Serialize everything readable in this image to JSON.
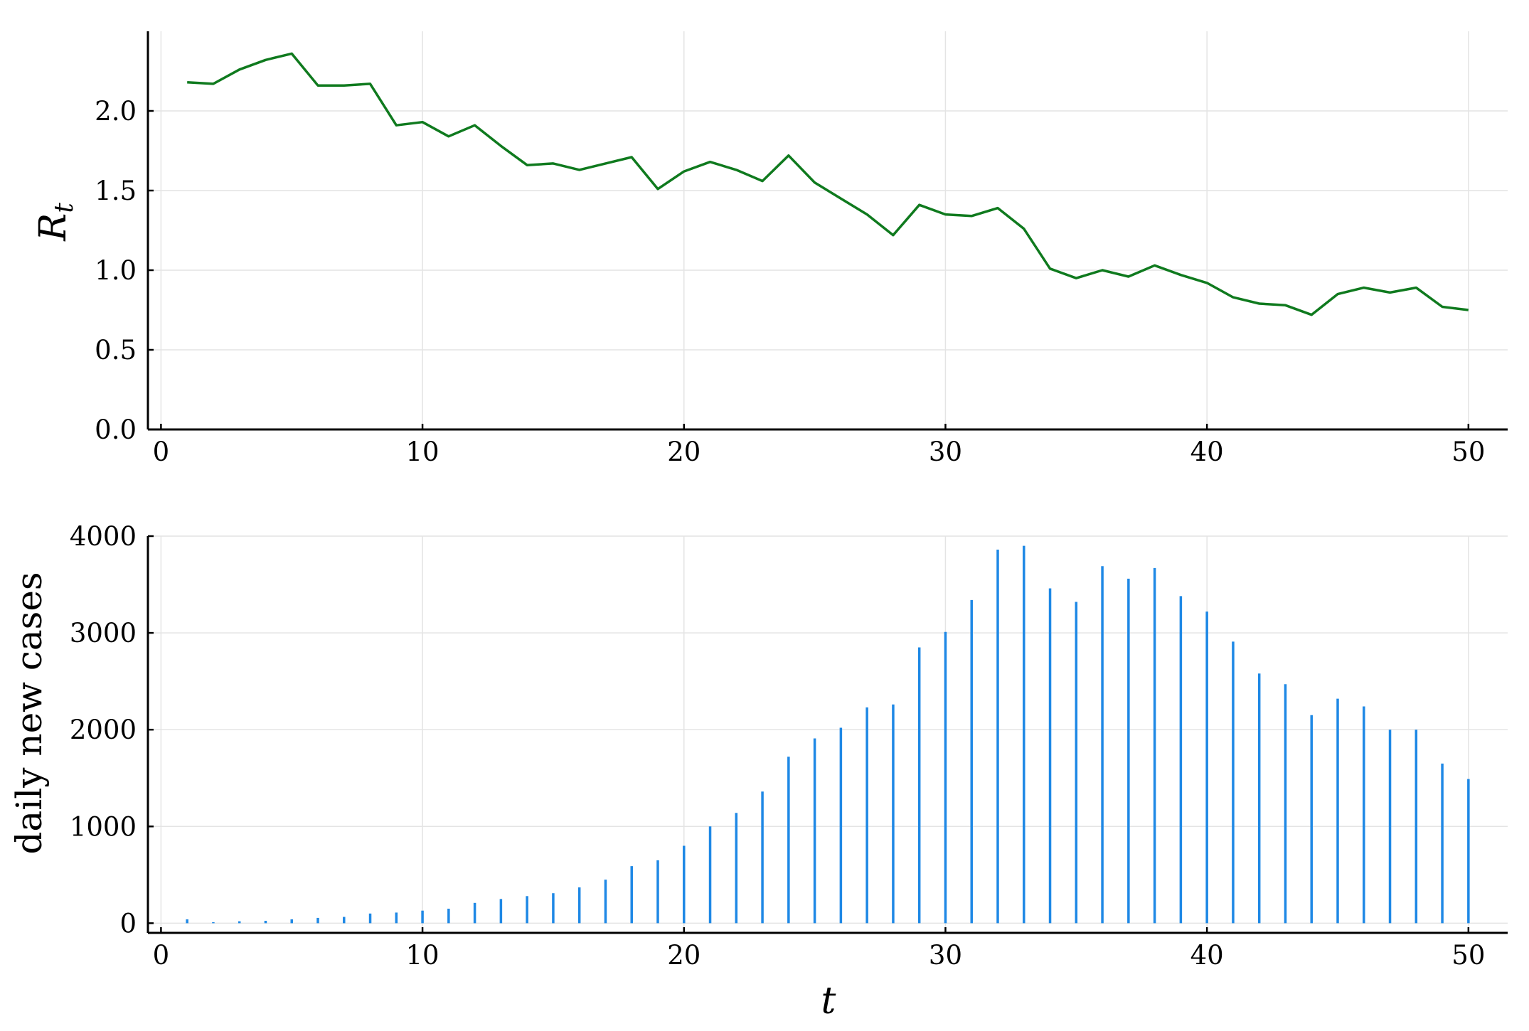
{
  "chart_data": [
    {
      "type": "line",
      "ylabel_base": "R",
      "ylabel_sub": "t",
      "xlabel": "",
      "xlim": [
        -0.5,
        51.5
      ],
      "ylim": [
        0,
        2.5
      ],
      "xticks": [
        0,
        10,
        20,
        30,
        40,
        50
      ],
      "xtick_labels": [
        "0",
        "10",
        "20",
        "30",
        "40",
        "50"
      ],
      "yticks": [
        0,
        0.5,
        1.0,
        1.5,
        2.0
      ],
      "ytick_labels": [
        "0.0",
        "0.5",
        "1.0",
        "1.5",
        "2.0"
      ],
      "grid": true,
      "legend": false,
      "color": "#0f7a1e",
      "x": [
        1,
        2,
        3,
        4,
        5,
        6,
        7,
        8,
        9,
        10,
        11,
        12,
        13,
        14,
        15,
        16,
        17,
        18,
        19,
        20,
        21,
        22,
        23,
        24,
        25,
        26,
        27,
        28,
        29,
        30,
        31,
        32,
        33,
        34,
        35,
        36,
        37,
        38,
        39,
        40,
        41,
        42,
        43,
        44,
        45,
        46,
        47,
        48,
        49,
        50
      ],
      "y": [
        2.18,
        2.17,
        2.26,
        2.32,
        2.36,
        2.16,
        2.16,
        2.17,
        1.91,
        1.93,
        1.84,
        1.91,
        1.78,
        1.66,
        1.67,
        1.63,
        1.67,
        1.71,
        1.51,
        1.62,
        1.68,
        1.63,
        1.56,
        1.72,
        1.55,
        1.45,
        1.35,
        1.22,
        1.41,
        1.35,
        1.34,
        1.39,
        1.26,
        1.01,
        0.95,
        1.0,
        0.96,
        1.03,
        0.97,
        0.92,
        0.83,
        0.79,
        0.78,
        0.72,
        0.85,
        0.89,
        0.86,
        0.89,
        0.77,
        0.75
      ]
    },
    {
      "type": "bar",
      "ylabel": "daily new cases",
      "xlabel": "t",
      "xlim": [
        -0.5,
        51.5
      ],
      "ylim": [
        -100,
        4000
      ],
      "xticks": [
        0,
        10,
        20,
        30,
        40,
        50
      ],
      "xtick_labels": [
        "0",
        "10",
        "20",
        "30",
        "40",
        "50"
      ],
      "yticks": [
        0,
        1000,
        2000,
        3000,
        4000
      ],
      "ytick_labels": [
        "0",
        "1000",
        "2000",
        "3000",
        "4000"
      ],
      "grid": true,
      "legend": false,
      "color": "#1e88e5",
      "x": [
        1,
        2,
        3,
        4,
        5,
        6,
        7,
        8,
        9,
        10,
        11,
        12,
        13,
        14,
        15,
        16,
        17,
        18,
        19,
        20,
        21,
        22,
        23,
        24,
        25,
        26,
        27,
        28,
        29,
        30,
        31,
        32,
        33,
        34,
        35,
        36,
        37,
        38,
        39,
        40,
        41,
        42,
        43,
        44,
        45,
        46,
        47,
        48,
        49,
        50
      ],
      "values": [
        40,
        10,
        20,
        25,
        40,
        55,
        65,
        100,
        110,
        130,
        150,
        210,
        250,
        280,
        310,
        370,
        450,
        590,
        650,
        800,
        1000,
        1140,
        1360,
        1720,
        1910,
        2020,
        2230,
        2260,
        2850,
        3010,
        3340,
        3860,
        3900,
        3460,
        3320,
        3690,
        3560,
        3670,
        3380,
        3220,
        2910,
        2580,
        2470,
        2150,
        2320,
        2240,
        2000,
        2000,
        1650,
        1490
      ]
    }
  ]
}
